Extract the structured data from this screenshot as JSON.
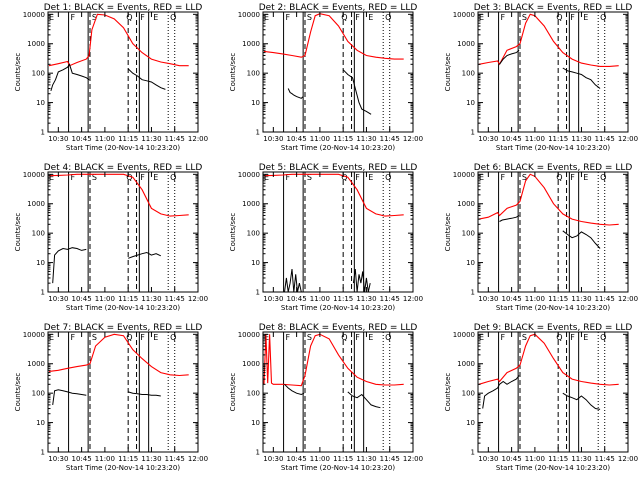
{
  "chart_data": {
    "type": "line",
    "layout": "3x3 grid",
    "shared": {
      "xlabel": "Start Time (20-Nov-14 10:23:20)",
      "ylabel": "Counts/sec",
      "x_ticks": [
        "10:30",
        "10:45",
        "11:00",
        "11:15",
        "11:30",
        "11:45",
        "12:00"
      ],
      "x_tick_hours": [
        10.5,
        10.75,
        11.0,
        11.25,
        11.5,
        11.75,
        12.0
      ],
      "xlim_hours": [
        10.389,
        12.0
      ],
      "y_ticks": [
        "1",
        "10",
        "100",
        "1000",
        "10000"
      ],
      "y_tick_values": [
        1,
        10,
        100,
        1000,
        10000
      ],
      "ylim": [
        1,
        12000
      ],
      "yscale": "log",
      "grid": false,
      "markers": {
        "solid_hours": [
          10.61,
          10.82,
          11.37,
          11.47
        ],
        "dashed_hours": [
          10.84,
          11.25,
          11.34
        ],
        "dotted_hours": [
          11.68,
          11.75
        ]
      },
      "marker_letters": [
        {
          "text": "E",
          "hour": 10.4
        },
        {
          "text": "F",
          "hour": 10.63
        },
        {
          "text": "S",
          "hour": 10.86
        },
        {
          "text": "Q",
          "hour": 11.23
        },
        {
          "text": "F",
          "hour": 11.38
        },
        {
          "text": "E",
          "hour": 11.52
        },
        {
          "text": "Q",
          "hour": 11.7
        }
      ],
      "colors": {
        "events": "#000000",
        "lld": "#ff0000",
        "axes": "#000000"
      }
    },
    "panels": [
      {
        "title": "Det 1: BLACK = Events, RED = LLD",
        "series": [
          {
            "color": "#ff0000",
            "x": [
              10.4,
              10.5,
              10.6,
              10.62,
              10.7,
              10.8,
              10.83,
              10.86,
              10.92,
              11.0,
              11.1,
              11.2,
              11.3,
              11.4,
              11.5,
              11.6,
              11.7,
              11.8,
              11.9
            ],
            "y": [
              180,
              210,
              250,
              180,
              230,
              300,
              400,
              3000,
              10000,
              9500,
              7000,
              3500,
              1000,
              500,
              300,
              240,
              210,
              180,
              180
            ]
          },
          {
            "color": "#000000",
            "x": [
              10.42,
              10.44,
              10.47,
              10.5,
              10.55,
              10.6,
              10.62,
              10.65,
              10.7,
              10.75,
              10.8,
              10.83
            ],
            "y": [
              25,
              40,
              60,
              110,
              130,
              160,
              200,
              100,
              90,
              80,
              70,
              60
            ]
          },
          {
            "color": "#000000",
            "x": [
              11.25,
              11.3,
              11.35,
              11.4,
              11.45,
              11.5,
              11.55,
              11.6,
              11.65
            ],
            "y": [
              140,
              100,
              80,
              60,
              55,
              50,
              40,
              32,
              28
            ]
          }
        ]
      },
      {
        "title": "Det 2: BLACK = Events, RED = LLD",
        "series": [
          {
            "color": "#ff0000",
            "x": [
              10.4,
              10.5,
              10.6,
              10.7,
              10.8,
              10.84,
              10.9,
              10.95,
              11.0,
              11.1,
              11.2,
              11.3,
              11.4,
              11.5,
              11.6,
              11.7,
              11.8,
              11.9
            ],
            "y": [
              550,
              500,
              450,
              400,
              350,
              400,
              2500,
              9000,
              10500,
              9000,
              4000,
              1200,
              600,
              400,
              350,
              320,
              300,
              300
            ]
          },
          {
            "color": "#000000",
            "x": [
              10.66,
              10.68,
              10.7,
              10.72,
              10.75,
              10.8,
              10.82
            ],
            "y": [
              30,
              22,
              20,
              18,
              16,
              14,
              16
            ]
          },
          {
            "color": "#000000",
            "x": [
              11.25,
              11.3,
              11.35,
              11.38,
              11.42,
              11.45,
              11.5,
              11.55
            ],
            "y": [
              130,
              90,
              70,
              30,
              10,
              6,
              5,
              4
            ]
          }
        ]
      },
      {
        "title": "Det 3: BLACK = Events, RED = LLD",
        "series": [
          {
            "color": "#ff0000",
            "x": [
              10.4,
              10.5,
              10.6,
              10.62,
              10.7,
              10.8,
              10.84,
              10.9,
              10.95,
              11.0,
              11.1,
              11.2,
              11.3,
              11.4,
              11.5,
              11.6,
              11.7,
              11.8,
              11.9
            ],
            "y": [
              200,
              230,
              260,
              200,
              600,
              800,
              1000,
              5000,
              10000,
              9000,
              4000,
              1200,
              500,
              300,
              220,
              190,
              170,
              170,
              180
            ]
          },
          {
            "color": "#000000",
            "x": [
              10.62,
              10.66,
              10.7,
              10.75,
              10.8,
              10.83
            ],
            "y": [
              200,
              300,
              400,
              450,
              500,
              600
            ]
          },
          {
            "color": "#000000",
            "x": [
              11.3,
              11.35,
              11.4,
              11.45,
              11.5,
              11.55,
              11.6,
              11.65,
              11.7
            ],
            "y": [
              150,
              120,
              110,
              100,
              90,
              70,
              60,
              40,
              30
            ]
          }
        ]
      },
      {
        "title": "Det 4: BLACK = Events, RED = LLD",
        "series": [
          {
            "color": "#ff0000",
            "x": [
              10.4,
              10.5,
              10.6,
              10.7,
              10.8,
              10.84,
              10.9,
              11.0,
              11.1,
              11.2,
              11.3,
              11.4,
              11.5,
              11.6,
              11.7,
              11.8,
              11.9
            ],
            "y": [
              9000,
              9200,
              9500,
              10000,
              10000,
              10000,
              10000,
              10000,
              10000,
              10000,
              8000,
              3000,
              700,
              450,
              380,
              400,
              420
            ]
          },
          {
            "color": "#000000",
            "x": [
              10.44,
              10.46,
              10.5,
              10.55,
              10.6,
              10.65,
              10.7,
              10.75,
              10.8
            ],
            "y": [
              2,
              18,
              25,
              30,
              28,
              32,
              30,
              26,
              28
            ]
          },
          {
            "color": "#000000",
            "x": [
              11.25,
              11.3,
              11.35,
              11.4,
              11.45,
              11.5,
              11.55,
              11.6
            ],
            "y": [
              14,
              16,
              18,
              20,
              22,
              18,
              20,
              17
            ]
          }
        ]
      },
      {
        "title": "Det 5: BLACK = Events, RED = LLD",
        "series": [
          {
            "color": "#ff0000",
            "x": [
              10.4,
              10.5,
              10.6,
              10.7,
              10.8,
              10.84,
              10.9,
              11.0,
              11.1,
              11.2,
              11.3,
              11.4,
              11.5,
              11.6,
              11.7,
              11.8,
              11.9
            ],
            "y": [
              9000,
              9200,
              9500,
              10000,
              10000,
              10000,
              10000,
              10000,
              10000,
              10000,
              8000,
              3000,
              700,
              450,
              380,
              400,
              420
            ]
          },
          {
            "color": "#000000",
            "x": [
              10.62,
              10.64,
              10.66,
              10.68,
              10.7,
              10.72,
              10.74,
              10.76,
              10.78,
              10.8
            ],
            "y": [
              1,
              3,
              1,
              2,
              6,
              1,
              4,
              1,
              2,
              1
            ]
          },
          {
            "color": "#000000",
            "x": [
              11.36,
              11.38,
              11.4,
              11.42,
              11.44,
              11.46,
              11.48,
              11.5,
              11.52,
              11.54
            ],
            "y": [
              2,
              6,
              1,
              4,
              2,
              5,
              1,
              3,
              1,
              2
            ]
          }
        ]
      },
      {
        "title": "Det 6: BLACK = Events, RED = LLD",
        "series": [
          {
            "color": "#ff0000",
            "x": [
              10.4,
              10.5,
              10.6,
              10.62,
              10.7,
              10.8,
              10.84,
              10.9,
              10.95,
              11.0,
              11.1,
              11.2,
              11.3,
              11.4,
              11.5,
              11.6,
              11.7,
              11.8,
              11.9
            ],
            "y": [
              300,
              350,
              500,
              400,
              700,
              900,
              1200,
              6000,
              10000,
              8500,
              3500,
              1000,
              450,
              300,
              250,
              220,
              200,
              190,
              200
            ]
          },
          {
            "color": "#000000",
            "x": [
              10.62,
              10.65,
              10.7,
              10.75,
              10.8,
              10.83
            ],
            "y": [
              250,
              280,
              300,
              320,
              350,
              400
            ]
          },
          {
            "color": "#000000",
            "x": [
              11.3,
              11.35,
              11.4,
              11.45,
              11.5,
              11.55,
              11.6,
              11.65,
              11.7
            ],
            "y": [
              120,
              90,
              70,
              80,
              110,
              90,
              70,
              45,
              30
            ]
          }
        ]
      },
      {
        "title": "Det 7: BLACK = Events, RED = LLD",
        "series": [
          {
            "color": "#ff0000",
            "x": [
              10.4,
              10.5,
              10.6,
              10.7,
              10.8,
              10.84,
              10.9,
              11.0,
              11.1,
              11.2,
              11.3,
              11.4,
              11.5,
              11.6,
              11.7,
              11.8,
              11.9
            ],
            "y": [
              550,
              600,
              700,
              800,
              900,
              1000,
              4000,
              8000,
              10000,
              9000,
              3000,
              1500,
              800,
              500,
              420,
              400,
              420
            ]
          },
          {
            "color": "#000000",
            "x": [
              10.44,
              10.46,
              10.5,
              10.55,
              10.6,
              10.65,
              10.7,
              10.75,
              10.8
            ],
            "y": [
              40,
              120,
              130,
              120,
              110,
              100,
              95,
              90,
              85
            ]
          },
          {
            "color": "#000000",
            "x": [
              11.25,
              11.3,
              11.35,
              11.4,
              11.45,
              11.5,
              11.55,
              11.6
            ],
            "y": [
              110,
              100,
              95,
              90,
              90,
              85,
              85,
              80
            ]
          }
        ]
      },
      {
        "title": "Det 8: BLACK = Events, RED = LLD",
        "series": [
          {
            "color": "#ff0000",
            "x": [
              10.4,
              10.42,
              10.44,
              10.46,
              10.48,
              10.5,
              10.6,
              10.7,
              10.8,
              10.84,
              10.9,
              10.95,
              11.0,
              11.1,
              11.2,
              11.3,
              11.4,
              11.5,
              11.6,
              11.7,
              11.8,
              11.9
            ],
            "y": [
              200,
              10000,
              220,
              10000,
              220,
              200,
              200,
              190,
              180,
              400,
              4000,
              9000,
              10000,
              7000,
              2000,
              700,
              350,
              250,
              200,
              190,
              190,
              200
            ]
          },
          {
            "color": "#000000",
            "x": [
              10.62,
              10.66,
              10.7,
              10.75,
              10.8,
              10.83
            ],
            "y": [
              200,
              150,
              120,
              100,
              90,
              100
            ]
          },
          {
            "color": "#000000",
            "x": [
              11.3,
              11.35,
              11.4,
              11.45,
              11.5,
              11.55,
              11.6,
              11.65
            ],
            "y": [
              110,
              80,
              70,
              90,
              60,
              40,
              35,
              32
            ]
          }
        ]
      },
      {
        "title": "Det 9: BLACK = Events, RED = LLD",
        "series": [
          {
            "color": "#ff0000",
            "x": [
              10.4,
              10.5,
              10.6,
              10.62,
              10.7,
              10.8,
              10.84,
              10.9,
              10.95,
              11.0,
              11.1,
              11.2,
              11.3,
              11.4,
              11.5,
              11.6,
              11.7,
              11.8,
              11.9
            ],
            "y": [
              200,
              250,
              300,
              250,
              500,
              700,
              900,
              4000,
              9000,
              10000,
              5000,
              1500,
              500,
              300,
              250,
              220,
              200,
              190,
              200
            ]
          },
          {
            "color": "#000000",
            "x": [
              10.44,
              10.46,
              10.5,
              10.55,
              10.6,
              10.62,
              10.66,
              10.7,
              10.75,
              10.8,
              10.83
            ],
            "y": [
              30,
              80,
              100,
              120,
              150,
              200,
              250,
              200,
              250,
              300,
              400
            ]
          },
          {
            "color": "#000000",
            "x": [
              11.3,
              11.35,
              11.4,
              11.45,
              11.5,
              11.55,
              11.6,
              11.65,
              11.7
            ],
            "y": [
              100,
              80,
              70,
              60,
              80,
              60,
              40,
              30,
              28
            ]
          }
        ]
      }
    ]
  }
}
